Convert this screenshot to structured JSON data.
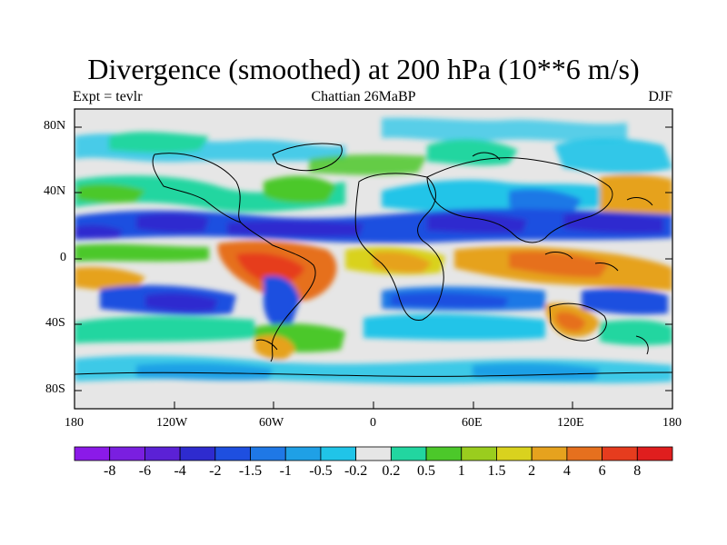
{
  "title": "Divergence (smoothed) at 200 hPa (10**6 m/s)",
  "left_string": "Expt = tevlr",
  "center_string": "Chattian  26MaBP",
  "right_string": "DJF",
  "lat_labels": [
    "80N",
    "40N",
    "0",
    "40S",
    "80S"
  ],
  "lon_labels": [
    "180",
    "120W",
    "60W",
    "0",
    "60E",
    "120E",
    "180"
  ],
  "colorbar": {
    "labels": [
      "-8",
      "-6",
      "-4",
      "-2",
      "-1.5",
      "-1",
      "-0.5",
      "-0.2",
      "0.2",
      "0.5",
      "1",
      "1.5",
      "2",
      "4",
      "6",
      "8"
    ],
    "colors": [
      "#8B1AE8",
      "#7A1FE0",
      "#5B21D6",
      "#2E2BCF",
      "#1E4FE0",
      "#1F78E6",
      "#1FA0E6",
      "#20C4E8",
      "#E6E6E6",
      "#22D6A0",
      "#4CC82A",
      "#9ACD1E",
      "#D9D21E",
      "#E6A21E",
      "#E6701E",
      "#E63C1E",
      "#E01E1E"
    ]
  },
  "colors": {
    "land_outline": "#000000",
    "neutral": "#E6E6E6"
  }
}
